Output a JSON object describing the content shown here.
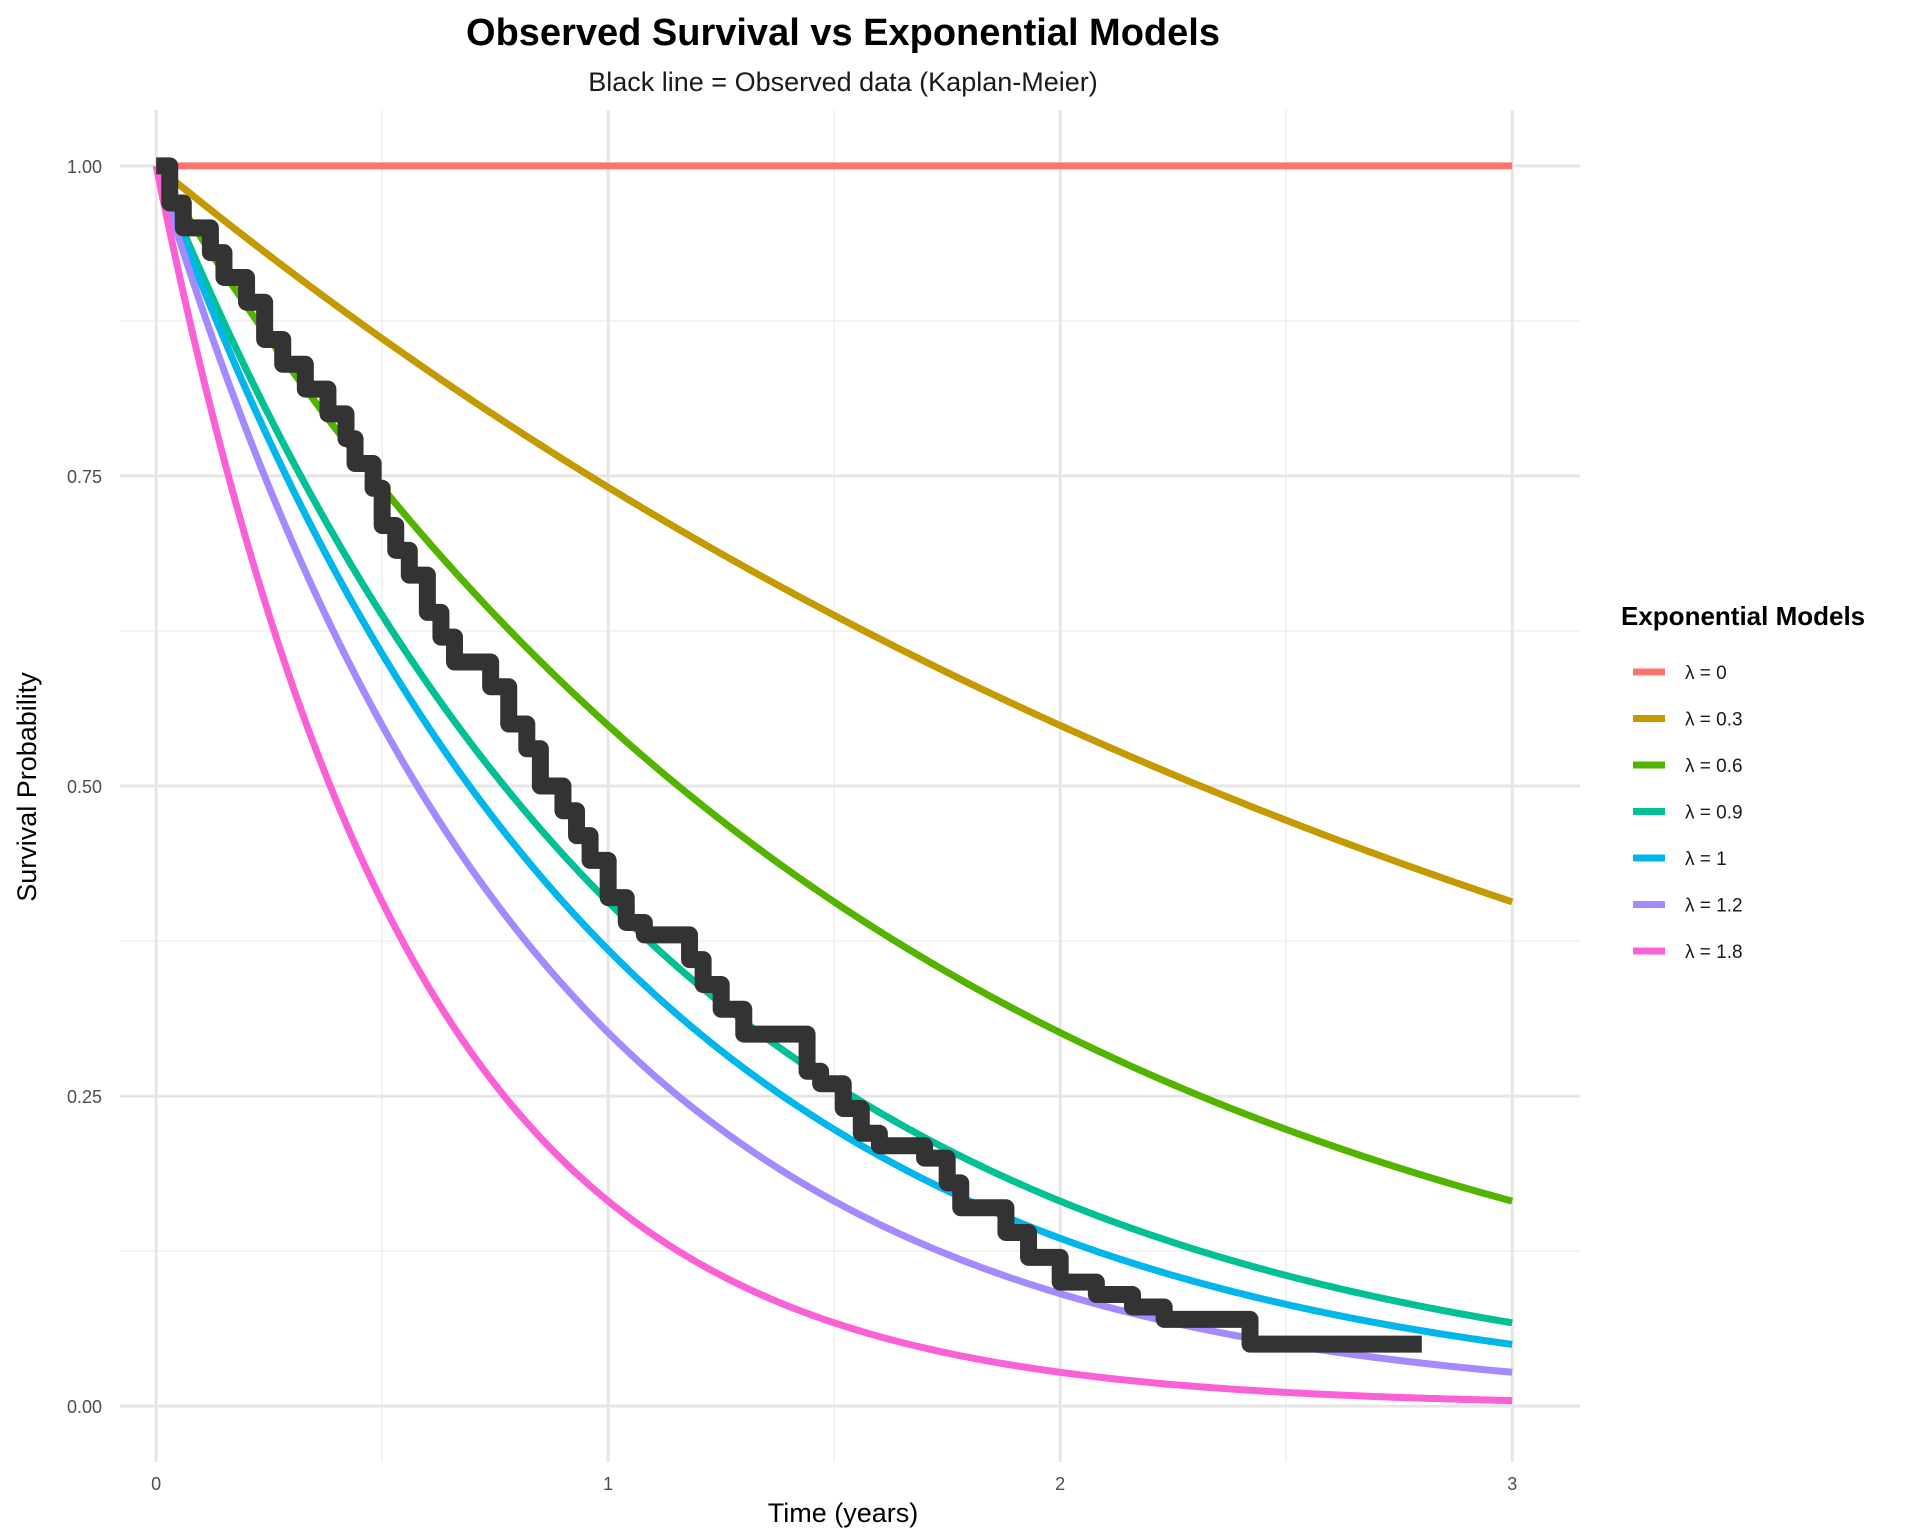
{
  "chart_data": {
    "type": "line",
    "title": "Observed Survival vs Exponential Models",
    "subtitle": "Black line = Observed data (Kaplan-Meier)",
    "xlabel": "Time (years)",
    "ylabel": "Survival Probability",
    "xlim": [
      -0.08,
      3.15
    ],
    "ylim": [
      -0.045,
      1.045
    ],
    "x_ticks": [
      0,
      1,
      2,
      3
    ],
    "x_tick_labels": [
      "0",
      "1",
      "2",
      "3"
    ],
    "y_ticks": [
      0,
      0.25,
      0.5,
      0.75,
      1
    ],
    "y_tick_labels": [
      "0.00",
      "0.25",
      "0.50",
      "0.75",
      "1.00"
    ],
    "grid": true,
    "legend": {
      "title": "Exponential Models",
      "position": "right"
    },
    "series": [
      {
        "name": "λ = 0",
        "lambda": 0,
        "color": "#F8766D",
        "x_range": [
          0,
          3
        ]
      },
      {
        "name": "λ = 0.3",
        "lambda": 0.3,
        "color": "#C49A00",
        "x_range": [
          0,
          3
        ]
      },
      {
        "name": "λ = 0.6",
        "lambda": 0.6,
        "color": "#53B400",
        "x_range": [
          0,
          3
        ]
      },
      {
        "name": "λ = 0.9",
        "lambda": 0.9,
        "color": "#00C094",
        "x_range": [
          0,
          3
        ]
      },
      {
        "name": "λ = 1",
        "lambda": 1,
        "color": "#00B6EB",
        "x_range": [
          0,
          3
        ]
      },
      {
        "name": "λ = 1.2",
        "lambda": 1.2,
        "color": "#A58AFF",
        "x_range": [
          0,
          3
        ]
      },
      {
        "name": "λ = 1.8",
        "lambda": 1.8,
        "color": "#FB61D7",
        "x_range": [
          0,
          3
        ]
      }
    ],
    "observed": {
      "color": "#333333",
      "steps": [
        [
          0,
          1.0
        ],
        [
          0.03,
          0.97
        ],
        [
          0.06,
          0.95
        ],
        [
          0.12,
          0.93
        ],
        [
          0.15,
          0.91
        ],
        [
          0.2,
          0.89
        ],
        [
          0.24,
          0.86
        ],
        [
          0.28,
          0.84
        ],
        [
          0.33,
          0.82
        ],
        [
          0.38,
          0.8
        ],
        [
          0.42,
          0.78
        ],
        [
          0.44,
          0.76
        ],
        [
          0.48,
          0.74
        ],
        [
          0.5,
          0.71
        ],
        [
          0.53,
          0.69
        ],
        [
          0.56,
          0.67
        ],
        [
          0.6,
          0.64
        ],
        [
          0.63,
          0.62
        ],
        [
          0.66,
          0.6
        ],
        [
          0.74,
          0.58
        ],
        [
          0.78,
          0.55
        ],
        [
          0.82,
          0.53
        ],
        [
          0.85,
          0.5
        ],
        [
          0.9,
          0.48
        ],
        [
          0.93,
          0.46
        ],
        [
          0.96,
          0.44
        ],
        [
          1.0,
          0.41
        ],
        [
          1.04,
          0.39
        ],
        [
          1.08,
          0.38
        ],
        [
          1.18,
          0.36
        ],
        [
          1.21,
          0.34
        ],
        [
          1.25,
          0.32
        ],
        [
          1.3,
          0.3
        ],
        [
          1.44,
          0.27
        ],
        [
          1.47,
          0.26
        ],
        [
          1.52,
          0.24
        ],
        [
          1.56,
          0.22
        ],
        [
          1.6,
          0.21
        ],
        [
          1.7,
          0.2
        ],
        [
          1.75,
          0.18
        ],
        [
          1.78,
          0.16
        ],
        [
          1.88,
          0.14
        ],
        [
          1.93,
          0.12
        ],
        [
          2.0,
          0.1
        ],
        [
          2.08,
          0.09
        ],
        [
          2.16,
          0.08
        ],
        [
          2.23,
          0.07
        ],
        [
          2.42,
          0.05
        ],
        [
          2.8,
          0.05
        ]
      ]
    }
  }
}
